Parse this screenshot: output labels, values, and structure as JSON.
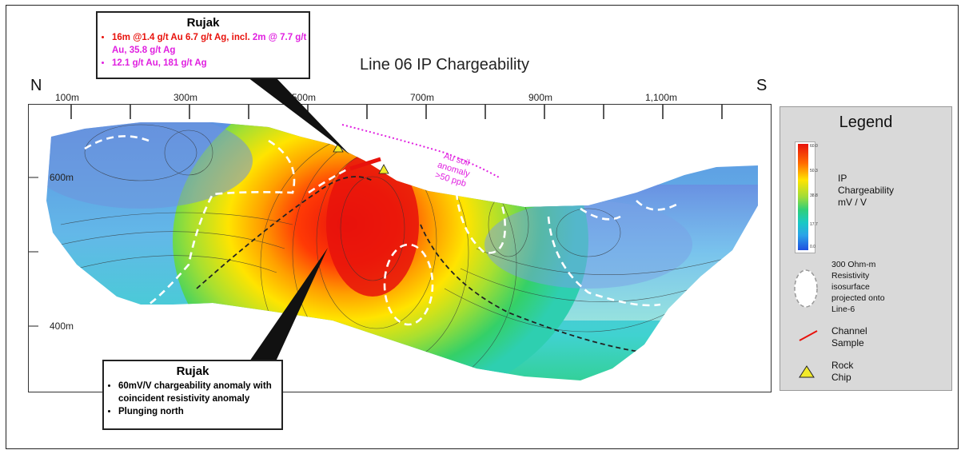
{
  "title": "Line 06 IP Chargeability",
  "north_label": "N",
  "south_label": "S",
  "x_ticks": [
    "100m",
    "300m",
    "500m",
    "700m",
    "900m",
    "1,100m"
  ],
  "y_ticks": [
    "600m",
    "400m"
  ],
  "callout_top": {
    "title": "Rujak",
    "bullet1_red": "16m @1.4 g/t Au 6.7 g/t Ag, incl.",
    "bullet1_magenta_a": "2m",
    "bullet1_magenta_b": "@ 7.7 g/t Au, 35.8 g/t Ag",
    "bullet2": "12.1 g/t Au, 181 g/t Ag"
  },
  "callout_bottom": {
    "title": "Rujak",
    "bullet1": "60mV/V chargeability anomaly with coincident resistivity anomaly",
    "bullet2": "Plunging north"
  },
  "annotation": {
    "line1": "Au soil",
    "line2": "anomaly",
    "line3": ">50 ppb"
  },
  "legend": {
    "title": "Legend",
    "colorbar_ticks": [
      "60.0",
      "50.3",
      "38.8",
      "17.7",
      "0.0"
    ],
    "ip_label_1": "IP",
    "ip_label_2": "Chargeability",
    "ip_label_3": "mV / V",
    "resistivity_1": "300 Ohm-m",
    "resistivity_2": "Resistivity",
    "resistivity_3": "isosurface",
    "resistivity_4": "projected onto",
    "resistivity_5": "Line-6",
    "channel_1": "Channel",
    "channel_2": "Sample",
    "rock_1": "Rock",
    "rock_2": "Chip"
  },
  "colors": {
    "channel_sample": "#e8120c",
    "rock_chip": "#f2ea2a",
    "soil_anomaly": "#e020e0",
    "callout_red": "#e8120c",
    "callout_magenta": "#e020e0"
  }
}
